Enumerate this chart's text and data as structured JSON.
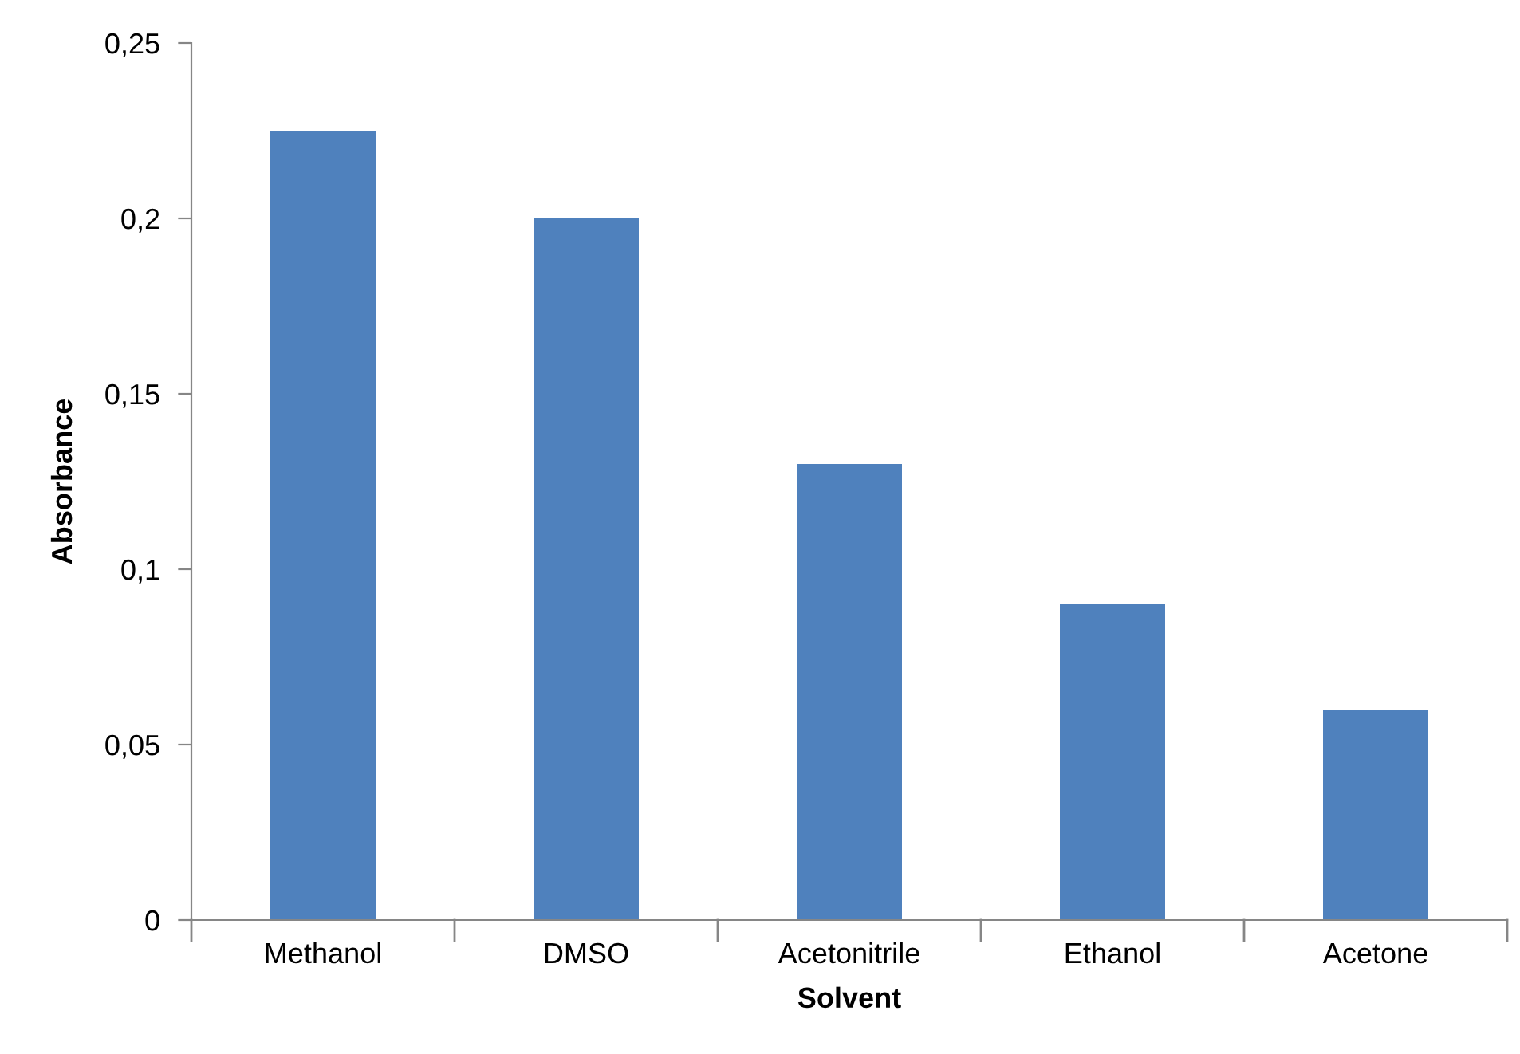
{
  "chart_data": {
    "type": "bar",
    "xlabel": "Solvent",
    "ylabel": "Absorbance",
    "categories": [
      "Methanol",
      "DMSO",
      "Acetonitrile",
      "Ethanol",
      "Acetone"
    ],
    "values": [
      0.225,
      0.2,
      0.13,
      0.09,
      0.06
    ],
    "color": "#4f81bd",
    "ylim": [
      0,
      0.25
    ],
    "yticks": [
      0,
      {
        "value": 0.05,
        "label": "0,05"
      },
      {
        "value": 0.1,
        "label": "0,1"
      },
      {
        "value": 0.15,
        "label": "0,15"
      },
      {
        "value": 0.2,
        "label": "0,2"
      },
      {
        "value": 0.25,
        "label": "0,25"
      }
    ],
    "grid": false,
    "legend": false
  }
}
